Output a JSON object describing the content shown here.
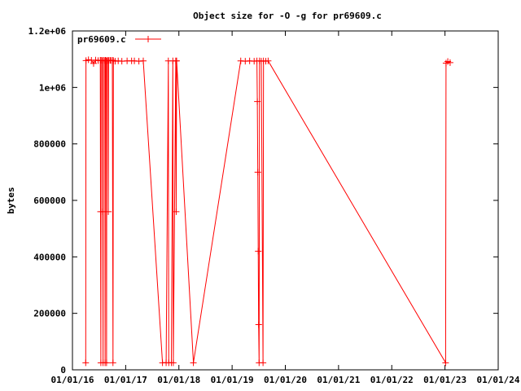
{
  "chart_data": {
    "type": "line",
    "title": "Object size for -O -g for pr69609.c",
    "xlabel": "",
    "ylabel": "bytes",
    "xlim": [
      "2016-01-01",
      "2024-01-01"
    ],
    "ylim": [
      0,
      1200000
    ],
    "grid": false,
    "legend": "top-left",
    "color": "#ff0000",
    "x_ticks": [
      "01/01/16",
      "01/01/17",
      "01/01/18",
      "01/01/19",
      "01/01/20",
      "01/01/21",
      "01/01/22",
      "01/01/23",
      "01/01/24"
    ],
    "y_ticks": [
      "0",
      "200000",
      "400000",
      "600000",
      "800000",
      "1e+06",
      "1.2e+06"
    ],
    "series": [
      {
        "name": "pr69609.c",
        "points": [
          [
            "2016-04-01",
            25000
          ],
          [
            "2016-04-03",
            1095000
          ],
          [
            "2016-04-20",
            1098000
          ],
          [
            "2016-05-10",
            1096000
          ],
          [
            "2016-05-25",
            1085000
          ],
          [
            "2016-06-08",
            1097000
          ],
          [
            "2016-06-25",
            1095000
          ],
          [
            "2016-07-10",
            1096000
          ],
          [
            "2016-07-12",
            560000
          ],
          [
            "2016-07-14",
            25000
          ],
          [
            "2016-07-16",
            1096000
          ],
          [
            "2016-07-25",
            1095000
          ],
          [
            "2016-07-27",
            560000
          ],
          [
            "2016-07-29",
            25000
          ],
          [
            "2016-07-31",
            1096000
          ],
          [
            "2016-08-10",
            1095000
          ],
          [
            "2016-08-12",
            25000
          ],
          [
            "2016-08-14",
            1096000
          ],
          [
            "2016-08-20",
            1095000
          ],
          [
            "2016-08-22",
            25000
          ],
          [
            "2016-08-24",
            1094000
          ],
          [
            "2016-09-01",
            1096000
          ],
          [
            "2016-09-03",
            560000
          ],
          [
            "2016-09-05",
            1095000
          ],
          [
            "2016-09-15",
            1096000
          ],
          [
            "2016-09-20",
            1095000
          ],
          [
            "2016-10-01",
            1096000
          ],
          [
            "2016-10-05",
            25000
          ],
          [
            "2016-10-08",
            1095000
          ],
          [
            "2016-10-20",
            1093000
          ],
          [
            "2016-11-10",
            1094000
          ],
          [
            "2016-12-05",
            1093000
          ],
          [
            "2017-01-10",
            1094000
          ],
          [
            "2017-02-10",
            1094000
          ],
          [
            "2017-03-01",
            1094000
          ],
          [
            "2017-04-01",
            1093000
          ],
          [
            "2017-05-01",
            1094000
          ],
          [
            "2017-09-10",
            25000
          ],
          [
            "2017-10-05",
            25000
          ],
          [
            "2017-10-20",
            1094000
          ],
          [
            "2017-10-23",
            25000
          ],
          [
            "2017-11-10",
            25000
          ],
          [
            "2017-11-20",
            1094000
          ],
          [
            "2017-11-23",
            25000
          ],
          [
            "2017-12-10",
            1094000
          ],
          [
            "2017-12-13",
            560000
          ],
          [
            "2017-12-16",
            1094000
          ],
          [
            "2018-04-10",
            25000
          ],
          [
            "2019-03-01",
            1094000
          ],
          [
            "2019-04-01",
            1093000
          ],
          [
            "2019-05-01",
            1094000
          ],
          [
            "2019-06-01",
            1093000
          ],
          [
            "2019-06-20",
            1094000
          ],
          [
            "2019-06-23",
            950000
          ],
          [
            "2019-06-26",
            700000
          ],
          [
            "2019-06-29",
            420000
          ],
          [
            "2019-07-02",
            160000
          ],
          [
            "2019-07-05",
            25000
          ],
          [
            "2019-07-08",
            1094000
          ],
          [
            "2019-07-20",
            1093000
          ],
          [
            "2019-08-01",
            25000
          ],
          [
            "2019-08-04",
            1094000
          ],
          [
            "2019-08-20",
            1093000
          ],
          [
            "2019-09-05",
            1094000
          ],
          [
            "2023-01-05",
            25000
          ],
          [
            "2023-01-08",
            1086000
          ],
          [
            "2023-01-20",
            1092000
          ],
          [
            "2023-02-05",
            1088000
          ]
        ]
      }
    ]
  }
}
